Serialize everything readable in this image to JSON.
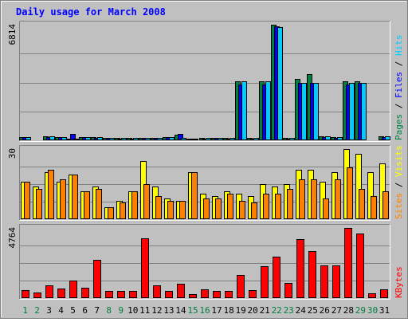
{
  "title": "Daily usage for March 2008",
  "colors": {
    "background": "#C0C0C0",
    "title": "#0000FF",
    "hits": "#00CCFF",
    "files": "#0000FF",
    "pages": "#008040",
    "visits": "#FFFF00",
    "sites": "#FF8000",
    "kbytes": "#FF0000",
    "weekday_label": "#000000",
    "weekend_label": "#008040"
  },
  "chart_data": [
    {
      "type": "bar",
      "panel": "hits-files-pages",
      "ymax_label": "6814",
      "legend": [
        "Pages",
        "Files",
        "Hits"
      ],
      "categories": [
        "1",
        "2",
        "3",
        "4",
        "5",
        "6",
        "7",
        "8",
        "9",
        "10",
        "11",
        "12",
        "13",
        "14",
        "15",
        "16",
        "17",
        "18",
        "19",
        "20",
        "21",
        "22",
        "23",
        "24",
        "25",
        "26",
        "27",
        "28",
        "29",
        "30",
        "31"
      ],
      "weekend_days": [
        "1",
        "2",
        "8",
        "9",
        "15",
        "16",
        "22",
        "23",
        "29",
        "30"
      ],
      "ylim": [
        0,
        6814
      ],
      "series": [
        {
          "name": "Pages",
          "values": [
            210,
            45,
            230,
            200,
            100,
            210,
            180,
            160,
            120,
            130,
            140,
            160,
            210,
            330,
            90,
            130,
            140,
            130,
            3480,
            140,
            3480,
            6814,
            130,
            3610,
            3900,
            230,
            170,
            3480,
            3480,
            20,
            220
          ]
        },
        {
          "name": "Files",
          "values": [
            180,
            40,
            200,
            180,
            380,
            180,
            160,
            140,
            110,
            110,
            120,
            140,
            180,
            380,
            80,
            110,
            120,
            110,
            3270,
            110,
            3270,
            6700,
            110,
            3380,
            3380,
            180,
            150,
            3270,
            3380,
            20,
            180
          ]
        },
        {
          "name": "Hits",
          "values": [
            200,
            45,
            230,
            200,
            100,
            210,
            180,
            160,
            120,
            130,
            140,
            160,
            210,
            140,
            90,
            130,
            140,
            130,
            3480,
            140,
            3480,
            6650,
            130,
            3380,
            3380,
            230,
            170,
            3380,
            3380,
            20,
            220
          ]
        }
      ]
    },
    {
      "type": "bar",
      "panel": "visits-sites",
      "ymax_label": "30",
      "legend": [
        "Sites",
        "Visits"
      ],
      "categories": [
        "1",
        "2",
        "3",
        "4",
        "5",
        "6",
        "7",
        "8",
        "9",
        "10",
        "11",
        "12",
        "13",
        "14",
        "15",
        "16",
        "17",
        "18",
        "19",
        "20",
        "21",
        "22",
        "23",
        "24",
        "25",
        "26",
        "27",
        "28",
        "29",
        "30",
        "31"
      ],
      "ylim": [
        0,
        30
      ],
      "series": [
        {
          "name": "Visits",
          "values": [
            16,
            14,
            20,
            16,
            19,
            12,
            14,
            5,
            8,
            12,
            25,
            14,
            9,
            8,
            20,
            11,
            10,
            12,
            11,
            10,
            15,
            14,
            15,
            21,
            21,
            16,
            20,
            30,
            28,
            20,
            24
          ]
        },
        {
          "name": "Sites",
          "values": [
            16,
            13,
            21,
            17,
            19,
            12,
            13,
            5,
            7,
            12,
            15,
            10,
            8,
            8,
            20,
            9,
            9,
            11,
            8,
            7,
            11,
            11,
            13,
            17,
            17,
            9,
            17,
            22,
            13,
            10,
            12
          ]
        }
      ]
    },
    {
      "type": "bar",
      "panel": "kbytes",
      "ymax_label": "4764",
      "legend": [
        "KBytes"
      ],
      "categories": [
        "1",
        "2",
        "3",
        "4",
        "5",
        "6",
        "7",
        "8",
        "9",
        "10",
        "11",
        "12",
        "13",
        "14",
        "15",
        "16",
        "17",
        "18",
        "19",
        "20",
        "21",
        "22",
        "23",
        "24",
        "25",
        "26",
        "27",
        "28",
        "29",
        "30",
        "31"
      ],
      "ylim": [
        0,
        4764
      ],
      "series": [
        {
          "name": "KBytes",
          "values": [
            520,
            380,
            880,
            660,
            1210,
            680,
            2580,
            480,
            480,
            490,
            4080,
            850,
            470,
            960,
            280,
            620,
            510,
            470,
            1560,
            520,
            2150,
            2790,
            1010,
            4010,
            3170,
            2230,
            2230,
            4764,
            4400,
            320,
            610
          ]
        }
      ]
    }
  ]
}
